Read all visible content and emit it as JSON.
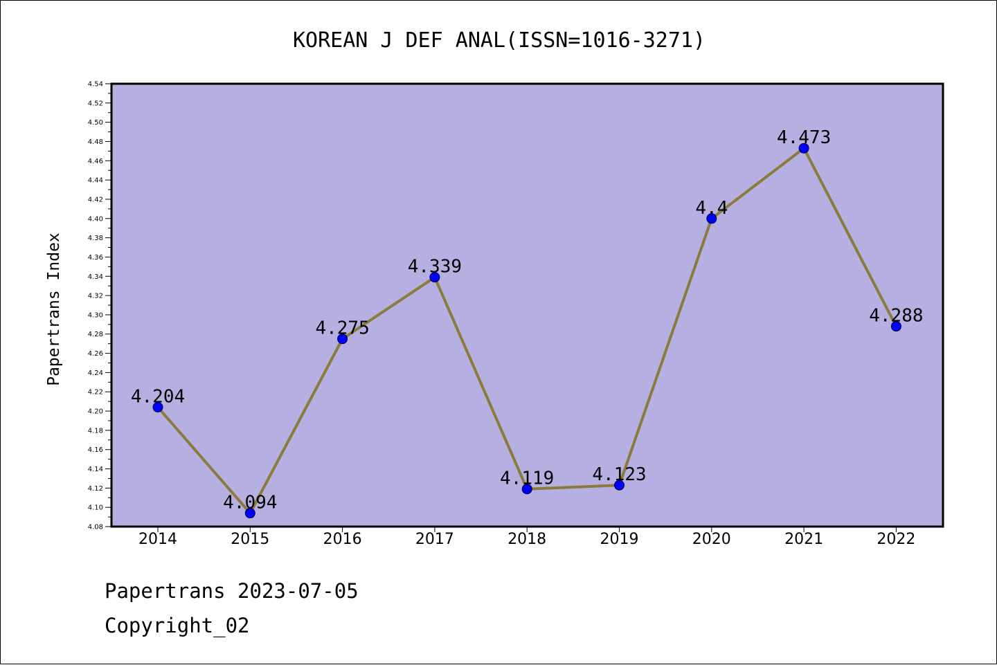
{
  "footer": {
    "line1": "Papertrans 2023-07-05",
    "line2": "Copyright_02"
  },
  "chart_data": {
    "type": "line",
    "title": "KOREAN J DEF ANAL(ISSN=1016-3271)",
    "xlabel": "",
    "ylabel": "Papertrans Index",
    "categories": [
      "2014",
      "2015",
      "2016",
      "2017",
      "2018",
      "2019",
      "2020",
      "2021",
      "2022"
    ],
    "series": [
      {
        "values": [
          4.204,
          4.094,
          4.275,
          4.339,
          4.119,
          4.123,
          4.4,
          4.473,
          4.288
        ],
        "labels": [
          "4.204",
          "4.094",
          "4.275",
          "4.339",
          "4.119",
          "4.123",
          "4.4",
          "4.473",
          "4.288"
        ]
      }
    ],
    "ylim": [
      4.08,
      4.54
    ],
    "ytick_step": 0.02,
    "grid": false,
    "colors": {
      "plot_background": "#b5afe2",
      "line": "#8b7a3a",
      "marker": "#0000ff"
    }
  }
}
